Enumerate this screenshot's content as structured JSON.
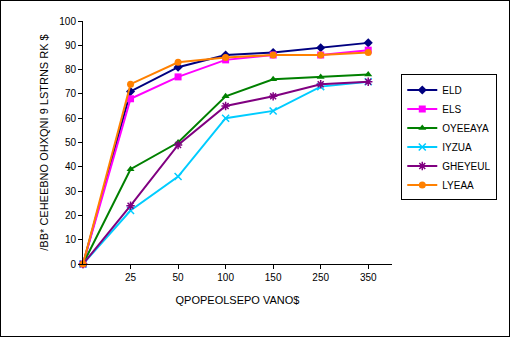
{
  "chart_data": {
    "type": "line",
    "x_label": "QPOPEOLSEPO VANO$",
    "y_label": "/BB* CEHEEBNO OHXQNI 9 LSTRNS RK $",
    "categories": [
      null,
      "25",
      "50",
      "100",
      "150",
      "250",
      "350"
    ],
    "series": [
      {
        "name": "ELD",
        "color": "#000080",
        "marker": "diamond",
        "values": [
          0,
          71,
          81,
          86,
          87,
          89,
          91
        ]
      },
      {
        "name": "ELS",
        "color": "#ff00ff",
        "marker": "square",
        "values": [
          0,
          68,
          77,
          84,
          86,
          86,
          88
        ]
      },
      {
        "name": "OYEEAYA",
        "color": "#008000",
        "marker": "triangle-up",
        "values": [
          0,
          39,
          50,
          69,
          76,
          77,
          78
        ]
      },
      {
        "name": "IYZUA",
        "color": "#00ccff",
        "marker": "x",
        "values": [
          0,
          22,
          36,
          60,
          63,
          73,
          75
        ]
      },
      {
        "name": "GHEYEUL",
        "color": "#800080",
        "marker": "asterisk",
        "values": [
          0,
          24,
          49,
          65,
          69,
          74,
          75
        ]
      },
      {
        "name": "LYEAA",
        "color": "#ff8000",
        "marker": "circle",
        "values": [
          0,
          74,
          83,
          85,
          86,
          86,
          87
        ]
      }
    ],
    "ylim": [
      0,
      100
    ],
    "yticks": [
      0,
      10,
      20,
      30,
      40,
      50,
      60,
      70,
      80,
      90,
      100
    ],
    "grid": false,
    "legend": "right"
  }
}
